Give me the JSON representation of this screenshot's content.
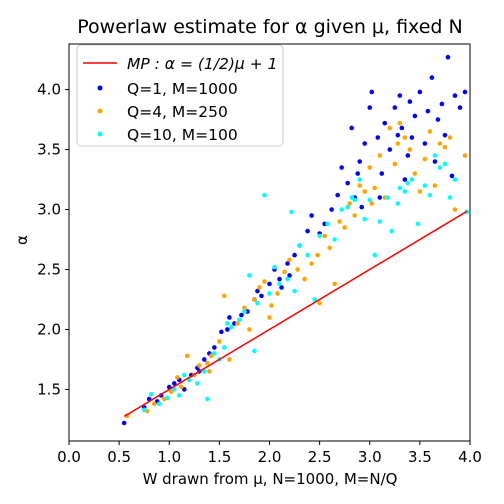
{
  "chart_data": {
    "type": "scatter",
    "title": "Powerlaw estimate for α given μ, fixed N",
    "xlabel": "W drawn from μ, N=1000, M=N/Q",
    "ylabel": "α",
    "xlim": [
      0.0,
      4.0
    ],
    "ylim": [
      1.07,
      4.38
    ],
    "grid": false,
    "legend_position": "upper-left",
    "x_ticks": [
      "0.0",
      "0.5",
      "1.0",
      "1.5",
      "2.0",
      "2.5",
      "3.0",
      "3.5",
      "4.0"
    ],
    "y_ticks": [
      "1.5",
      "2.0",
      "2.5",
      "3.0",
      "3.5",
      "4.0"
    ],
    "line": {
      "name": "MP : α = (1/2)μ + 1",
      "color": "#ff0000",
      "x": [
        0.55,
        3.97
      ],
      "y": [
        1.275,
        2.985
      ]
    },
    "series": [
      {
        "name": "Q=1, M=1000",
        "color": "#0000ff",
        "points": [
          [
            0.55,
            1.22
          ],
          [
            0.75,
            1.35
          ],
          [
            0.8,
            1.42
          ],
          [
            0.88,
            1.4
          ],
          [
            0.92,
            1.45
          ],
          [
            1.0,
            1.52
          ],
          [
            1.05,
            1.55
          ],
          [
            1.1,
            1.58
          ],
          [
            1.15,
            1.5
          ],
          [
            1.22,
            1.62
          ],
          [
            1.28,
            1.68
          ],
          [
            1.35,
            1.75
          ],
          [
            1.4,
            1.8
          ],
          [
            1.45,
            1.85
          ],
          [
            1.52,
            1.98
          ],
          [
            1.58,
            2.0
          ],
          [
            1.65,
            2.05
          ],
          [
            1.72,
            2.12
          ],
          [
            1.78,
            2.15
          ],
          [
            1.85,
            2.25
          ],
          [
            1.88,
            2.32
          ],
          [
            1.92,
            2.28
          ],
          [
            2.0,
            2.38
          ],
          [
            2.05,
            2.5
          ],
          [
            2.1,
            2.42
          ],
          [
            2.12,
            2.35
          ],
          [
            2.18,
            2.55
          ],
          [
            2.25,
            2.62
          ],
          [
            2.3,
            2.7
          ],
          [
            2.38,
            2.82
          ],
          [
            2.42,
            2.95
          ],
          [
            2.5,
            2.8
          ],
          [
            2.55,
            2.88
          ],
          [
            2.62,
            3.0
          ],
          [
            2.68,
            3.12
          ],
          [
            2.72,
            3.35
          ],
          [
            2.78,
            3.22
          ],
          [
            2.82,
            3.68
          ],
          [
            2.85,
            3.1
          ],
          [
            2.88,
            3.3
          ],
          [
            2.92,
            3.02
          ],
          [
            2.95,
            3.55
          ],
          [
            3.0,
            3.85
          ],
          [
            3.02,
            3.98
          ],
          [
            3.08,
            3.6
          ],
          [
            3.12,
            3.3
          ],
          [
            3.15,
            3.72
          ],
          [
            3.2,
            3.5
          ],
          [
            3.25,
            3.85
          ],
          [
            3.28,
            3.62
          ],
          [
            3.3,
            3.95
          ],
          [
            3.32,
            3.68
          ],
          [
            3.35,
            3.25
          ],
          [
            3.38,
            3.45
          ],
          [
            3.42,
            3.6
          ],
          [
            3.45,
            3.78
          ],
          [
            3.5,
            3.98
          ],
          [
            3.55,
            3.55
          ],
          [
            3.58,
            3.82
          ],
          [
            3.62,
            4.1
          ],
          [
            3.65,
            3.4
          ],
          [
            3.68,
            3.75
          ],
          [
            3.72,
            3.88
          ],
          [
            3.75,
            3.62
          ],
          [
            3.78,
            4.27
          ],
          [
            3.82,
            3.28
          ],
          [
            3.85,
            3.95
          ],
          [
            3.9,
            3.85
          ],
          [
            3.95,
            3.98
          ],
          [
            1.3,
            1.65
          ],
          [
            1.6,
            2.1
          ],
          [
            2.2,
            2.45
          ],
          [
            2.9,
            3.4
          ],
          [
            3.1,
            3.1
          ],
          [
            3.4,
            3.9
          ]
        ]
      },
      {
        "name": "Q=4, M=250",
        "color": "#ffa500",
        "points": [
          [
            0.58,
            1.28
          ],
          [
            0.78,
            1.32
          ],
          [
            0.85,
            1.38
          ],
          [
            0.95,
            1.42
          ],
          [
            1.02,
            1.48
          ],
          [
            1.08,
            1.6
          ],
          [
            1.12,
            1.52
          ],
          [
            1.18,
            1.78
          ],
          [
            1.25,
            1.62
          ],
          [
            1.3,
            1.7
          ],
          [
            1.38,
            1.72
          ],
          [
            1.42,
            1.78
          ],
          [
            1.5,
            1.9
          ],
          [
            1.55,
            2.28
          ],
          [
            1.6,
            1.75
          ],
          [
            1.68,
            2.05
          ],
          [
            1.75,
            2.18
          ],
          [
            1.8,
            2.0
          ],
          [
            1.85,
            2.25
          ],
          [
            1.9,
            2.35
          ],
          [
            1.95,
            2.4
          ],
          [
            2.02,
            2.2
          ],
          [
            2.08,
            2.3
          ],
          [
            2.15,
            2.48
          ],
          [
            2.2,
            2.58
          ],
          [
            2.28,
            2.5
          ],
          [
            2.35,
            2.42
          ],
          [
            2.42,
            2.55
          ],
          [
            2.48,
            2.62
          ],
          [
            2.55,
            2.78
          ],
          [
            2.6,
            2.68
          ],
          [
            2.65,
            2.38
          ],
          [
            2.7,
            2.9
          ],
          [
            2.75,
            2.85
          ],
          [
            2.8,
            3.05
          ],
          [
            2.85,
            2.95
          ],
          [
            2.9,
            3.2
          ],
          [
            2.95,
            3.15
          ],
          [
            3.0,
            3.35
          ],
          [
            3.05,
            3.18
          ],
          [
            3.1,
            3.45
          ],
          [
            3.15,
            3.1
          ],
          [
            3.2,
            3.68
          ],
          [
            3.25,
            3.38
          ],
          [
            3.3,
            3.72
          ],
          [
            3.35,
            3.6
          ],
          [
            3.4,
            3.5
          ],
          [
            3.45,
            3.3
          ],
          [
            3.5,
            3.15
          ],
          [
            3.55,
            3.42
          ],
          [
            3.6,
            3.65
          ],
          [
            3.65,
            3.2
          ],
          [
            3.7,
            3.55
          ],
          [
            3.75,
            3.52
          ],
          [
            3.8,
            3.6
          ],
          [
            3.85,
            3.0
          ],
          [
            3.95,
            3.45
          ],
          [
            1.4,
            1.65
          ],
          [
            2.0,
            2.1
          ],
          [
            2.5,
            2.22
          ],
          [
            3.02,
            3.05
          ],
          [
            3.28,
            3.55
          ]
        ]
      },
      {
        "name": "Q=10, M=100",
        "color": "#00ffff",
        "points": [
          [
            0.75,
            1.33
          ],
          [
            0.82,
            1.46
          ],
          [
            0.9,
            1.38
          ],
          [
            0.98,
            1.43
          ],
          [
            1.05,
            1.5
          ],
          [
            1.1,
            1.45
          ],
          [
            1.2,
            1.58
          ],
          [
            1.28,
            1.55
          ],
          [
            1.35,
            1.65
          ],
          [
            1.38,
            1.42
          ],
          [
            1.45,
            1.8
          ],
          [
            1.5,
            1.75
          ],
          [
            1.58,
            2.05
          ],
          [
            1.62,
            2.02
          ],
          [
            1.7,
            2.08
          ],
          [
            1.75,
            2.15
          ],
          [
            1.8,
            2.45
          ],
          [
            1.85,
            1.82
          ],
          [
            1.88,
            2.22
          ],
          [
            1.95,
            3.12
          ],
          [
            2.0,
            2.3
          ],
          [
            2.05,
            2.52
          ],
          [
            2.1,
            2.38
          ],
          [
            2.18,
            2.42
          ],
          [
            2.22,
            2.98
          ],
          [
            2.3,
            2.7
          ],
          [
            2.38,
            2.62
          ],
          [
            2.45,
            2.25
          ],
          [
            2.5,
            2.78
          ],
          [
            2.58,
            2.88
          ],
          [
            2.65,
            2.75
          ],
          [
            2.72,
            3.0
          ],
          [
            2.78,
            3.02
          ],
          [
            2.85,
            3.08
          ],
          [
            2.9,
            3.25
          ],
          [
            2.95,
            2.92
          ],
          [
            3.0,
            3.08
          ],
          [
            3.05,
            2.62
          ],
          [
            3.1,
            2.9
          ],
          [
            3.18,
            3.1
          ],
          [
            3.22,
            2.82
          ],
          [
            3.28,
            3.05
          ],
          [
            3.3,
            3.18
          ],
          [
            3.35,
            3.15
          ],
          [
            3.42,
            3.25
          ],
          [
            3.48,
            2.88
          ],
          [
            3.55,
            3.2
          ],
          [
            3.6,
            3.12
          ],
          [
            3.65,
            3.45
          ],
          [
            3.7,
            3.35
          ],
          [
            3.75,
            3.38
          ],
          [
            3.8,
            3.1
          ],
          [
            3.85,
            3.25
          ],
          [
            3.97,
            2.98
          ],
          [
            1.15,
            1.62
          ],
          [
            1.55,
            1.85
          ],
          [
            2.25,
            2.32
          ],
          [
            2.82,
            3.1
          ],
          [
            3.38,
            3.22
          ]
        ]
      }
    ]
  }
}
